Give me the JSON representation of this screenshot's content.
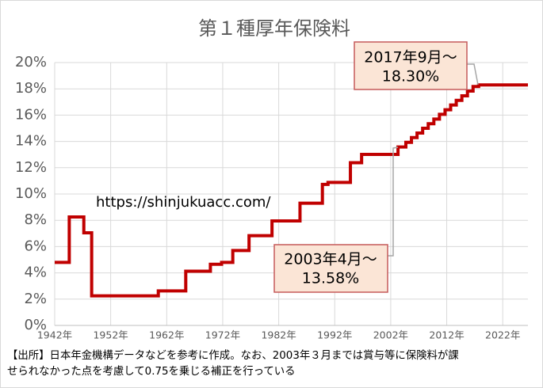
{
  "chart_data": {
    "type": "line",
    "step": true,
    "title": "第１種厚年保険料",
    "watermark": "https://shinjukuacc.com/",
    "color": "#c00000",
    "x": [
      1942,
      1944.6,
      1947.2,
      1948.6,
      1960.5,
      1965.4,
      1969.8,
      1971.8,
      1973.8,
      1976.7,
      1980.8,
      1985.8,
      1989.8,
      1990.8,
      1994.8,
      1996.8,
      2003.3,
      2004.7,
      2005.7,
      2006.7,
      2007.7,
      2008.7,
      2009.7,
      2010.7,
      2011.7,
      2012.7,
      2013.7,
      2014.7,
      2015.7,
      2016.7,
      2017.7
    ],
    "values": [
      4.8,
      8.25,
      7.05,
      2.25,
      2.63,
      4.13,
      4.65,
      4.8,
      5.7,
      6.83,
      7.95,
      9.3,
      10.73,
      10.88,
      12.38,
      13.01,
      13.58,
      13.93,
      14.29,
      14.64,
      15.0,
      15.35,
      15.7,
      16.06,
      16.41,
      16.77,
      17.12,
      17.47,
      17.83,
      18.18,
      18.3
    ],
    "xlim": [
      1942,
      2026.5
    ],
    "xticks": [
      {
        "value": 1942,
        "label": "1942年"
      },
      {
        "value": 1952,
        "label": "1952年"
      },
      {
        "value": 1962,
        "label": "1962年"
      },
      {
        "value": 1972,
        "label": "1972年"
      },
      {
        "value": 1982,
        "label": "1982年"
      },
      {
        "value": 1992,
        "label": "1992年"
      },
      {
        "value": 2002,
        "label": "2002年"
      },
      {
        "value": 2012,
        "label": "2012年"
      },
      {
        "value": 2022,
        "label": "2022年"
      }
    ],
    "ylim": [
      0,
      20
    ],
    "yticks": [
      {
        "value": 0,
        "label": "0%"
      },
      {
        "value": 2,
        "label": "2%"
      },
      {
        "value": 4,
        "label": "4%"
      },
      {
        "value": 6,
        "label": "6%"
      },
      {
        "value": 8,
        "label": "8%"
      },
      {
        "value": 10,
        "label": "10%"
      },
      {
        "value": 12,
        "label": "12%"
      },
      {
        "value": 14,
        "label": "14%"
      },
      {
        "value": 16,
        "label": "16%"
      },
      {
        "value": 18,
        "label": "18%"
      },
      {
        "value": 20,
        "label": "20%"
      }
    ],
    "grid": true,
    "annotations": [
      {
        "lines": [
          "2017年9月～",
          "18.30%"
        ]
      },
      {
        "lines": [
          "2003年4月～",
          "13.58%"
        ]
      }
    ],
    "footnote": [
      "【出所】日本年金機構データなどを参考に作成。なお、2003年３月までは賞与等に保険料が課",
      "せられなかった点を考慮して0.75を乗じる補正を行っている"
    ]
  }
}
